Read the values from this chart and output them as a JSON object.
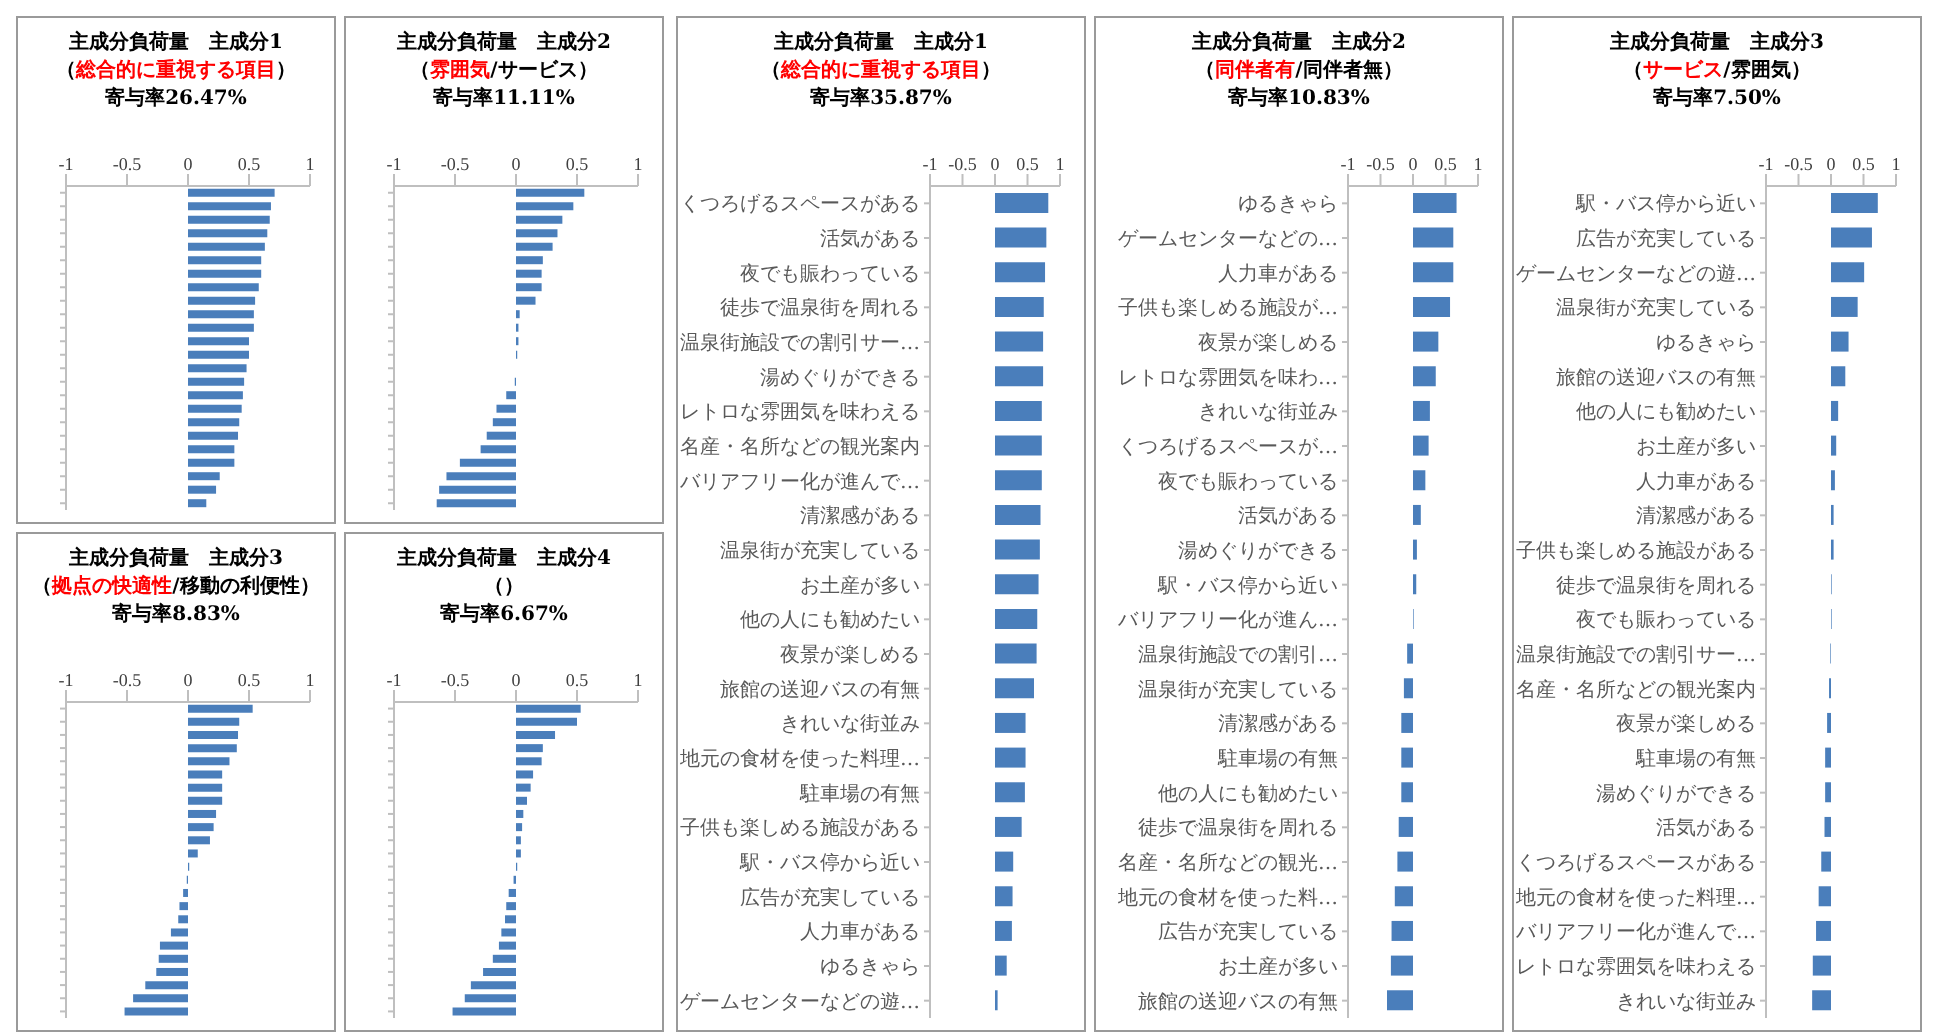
{
  "chart_data": [
    {
      "type": "bar",
      "orientation": "horizontal",
      "title": "主成分負荷量　主成分1",
      "subtitle": "（総合的に重視する項目）",
      "annotations": [
        "寄与率26.47%"
      ],
      "color": "#4a7ebb",
      "xlim": [
        -1,
        1
      ],
      "xticks": [
        -1,
        -0.5,
        0,
        0.5,
        1
      ],
      "categories": [
        null,
        null,
        null,
        null,
        null,
        null,
        null,
        null,
        null,
        null,
        null,
        null,
        null,
        null,
        null,
        null,
        null,
        null,
        null,
        null,
        null,
        null,
        null,
        null
      ],
      "values": [
        0.71,
        0.68,
        0.67,
        0.65,
        0.63,
        0.6,
        0.6,
        0.58,
        0.55,
        0.54,
        0.54,
        0.5,
        0.5,
        0.48,
        0.46,
        0.45,
        0.44,
        0.42,
        0.41,
        0.38,
        0.38,
        0.26,
        0.23,
        0.15
      ]
    },
    {
      "type": "bar",
      "orientation": "horizontal",
      "title": "主成分負荷量　主成分2",
      "subtitle": "（雰囲気/サービス）",
      "annotations": [
        "寄与率11.11%"
      ],
      "color": "#4a7ebb",
      "xlim": [
        -1,
        1
      ],
      "xticks": [
        -1,
        -0.5,
        0,
        0.5,
        1
      ],
      "categories": [
        null,
        null,
        null,
        null,
        null,
        null,
        null,
        null,
        null,
        null,
        null,
        null,
        null,
        null,
        null,
        null,
        null,
        null,
        null,
        null,
        null,
        null,
        null,
        null
      ],
      "values": [
        0.56,
        0.47,
        0.38,
        0.34,
        0.3,
        0.22,
        0.21,
        0.21,
        0.16,
        0.03,
        0.02,
        0.02,
        0.01,
        0.0,
        -0.01,
        -0.08,
        -0.16,
        -0.19,
        -0.24,
        -0.29,
        -0.46,
        -0.57,
        -0.63,
        -0.65
      ]
    },
    {
      "type": "bar",
      "orientation": "horizontal",
      "title": "主成分負荷量　主成分3",
      "subtitle": "（拠点の快適性/移動の利便性）",
      "annotations": [
        "寄与率8.83%"
      ],
      "color": "#4a7ebb",
      "xlim": [
        -1,
        1
      ],
      "xticks": [
        -1,
        -0.5,
        0,
        0.5,
        1
      ],
      "categories": [
        null,
        null,
        null,
        null,
        null,
        null,
        null,
        null,
        null,
        null,
        null,
        null,
        null,
        null,
        null,
        null,
        null,
        null,
        null,
        null,
        null,
        null,
        null,
        null
      ],
      "values": [
        0.53,
        0.42,
        0.41,
        0.4,
        0.34,
        0.28,
        0.28,
        0.28,
        0.23,
        0.21,
        0.18,
        0.08,
        0.01,
        -0.01,
        -0.04,
        -0.07,
        -0.08,
        -0.14,
        -0.23,
        -0.24,
        -0.26,
        -0.35,
        -0.45,
        -0.52
      ]
    },
    {
      "type": "bar",
      "orientation": "horizontal",
      "title": "主成分負荷量　主成分4",
      "subtitle": "（）",
      "annotations": [
        "寄与率6.67%"
      ],
      "color": "#4a7ebb",
      "xlim": [
        -1,
        1
      ],
      "xticks": [
        -1,
        -0.5,
        0,
        0.5,
        1
      ],
      "categories": [
        null,
        null,
        null,
        null,
        null,
        null,
        null,
        null,
        null,
        null,
        null,
        null,
        null,
        null,
        null,
        null,
        null,
        null,
        null,
        null,
        null,
        null,
        null,
        null
      ],
      "values": [
        0.53,
        0.5,
        0.32,
        0.22,
        0.21,
        0.14,
        0.12,
        0.09,
        0.06,
        0.05,
        0.04,
        0.04,
        0.01,
        -0.02,
        -0.06,
        -0.08,
        -0.09,
        -0.12,
        -0.14,
        -0.19,
        -0.27,
        -0.37,
        -0.42,
        -0.52
      ]
    },
    {
      "type": "bar",
      "orientation": "horizontal",
      "title": "主成分負荷量　主成分1",
      "subtitle": "（総合的に重視する項目）",
      "annotations": [
        "寄与率35.87%"
      ],
      "color": "#4a7ebb",
      "xlim": [
        -1,
        1
      ],
      "xticks": [
        -1,
        -0.5,
        0,
        0.5,
        1
      ],
      "categories": [
        "くつろげるスペースがある",
        "活気がある",
        "夜でも賑わっている",
        "徒歩で温泉街を周れる",
        "温泉街施設での割引サー…",
        "湯めぐりができる",
        "レトロな雰囲気を味わえる",
        "名産・名所などの観光案内",
        "バリアフリー化が進んで…",
        "清潔感がある",
        "温泉街が充実している",
        "お土産が多い",
        "他の人にも勧めたい",
        "夜景が楽しめる",
        "旅館の送迎バスの有無",
        "きれいな街並み",
        "地元の食材を使った料理…",
        "駐車場の有無",
        "子供も楽しめる施設がある",
        "駅・バス停から近い",
        "広告が充実している",
        "人力車がある",
        "ゆるきゃら",
        "ゲームセンターなどの遊…"
      ],
      "values": [
        0.82,
        0.79,
        0.77,
        0.75,
        0.74,
        0.74,
        0.72,
        0.72,
        0.72,
        0.7,
        0.69,
        0.67,
        0.65,
        0.64,
        0.6,
        0.47,
        0.47,
        0.46,
        0.41,
        0.28,
        0.27,
        0.26,
        0.18,
        0.04
      ]
    },
    {
      "type": "bar",
      "orientation": "horizontal",
      "title": "主成分負荷量　主成分2",
      "subtitle": "（同伴者有/同伴者無）",
      "annotations": [
        "寄与率10.83%"
      ],
      "color": "#4a7ebb",
      "xlim": [
        -1,
        1
      ],
      "xticks": [
        -1,
        -0.5,
        0,
        0.5,
        1
      ],
      "categories": [
        "ゆるきゃら",
        "ゲームセンターなどの…",
        "人力車がある",
        "子供も楽しめる施設が…",
        "夜景が楽しめる",
        "レトロな雰囲気を味わ…",
        "きれいな街並み",
        "くつろげるスペースが…",
        "夜でも賑わっている",
        "活気がある",
        "湯めぐりができる",
        "駅・バス停から近い",
        "バリアフリー化が進ん…",
        "温泉街施設での割引…",
        "温泉街が充実している",
        "清潔感がある",
        "駐車場の有無",
        "他の人にも勧めたい",
        "徒歩で温泉街を周れる",
        "名産・名所などの観光…",
        "地元の食材を使った料…",
        "広告が充実している",
        "お土産が多い",
        "旅館の送迎バスの有無"
      ],
      "values": [
        0.67,
        0.62,
        0.62,
        0.57,
        0.39,
        0.35,
        0.26,
        0.24,
        0.19,
        0.12,
        0.06,
        0.05,
        0.01,
        -0.09,
        -0.14,
        -0.18,
        -0.18,
        -0.18,
        -0.22,
        -0.24,
        -0.28,
        -0.33,
        -0.34,
        -0.4
      ]
    },
    {
      "type": "bar",
      "orientation": "horizontal",
      "title": "主成分負荷量　主成分3",
      "subtitle": "（サービス/雰囲気）",
      "annotations": [
        "寄与率7.50%"
      ],
      "color": "#4a7ebb",
      "xlim": [
        -1,
        1
      ],
      "xticks": [
        -1,
        -0.5,
        0,
        0.5,
        1
      ],
      "categories": [
        "駅・バス停から近い",
        "広告が充実している",
        "ゲームセンターなどの遊…",
        "温泉街が充実している",
        "ゆるきゃら",
        "旅館の送迎バスの有無",
        "他の人にも勧めたい",
        "お土産が多い",
        "人力車がある",
        "清潔感がある",
        "子供も楽しめる施設がある",
        "徒歩で温泉街を周れる",
        "夜でも賑わっている",
        "温泉街施設での割引サー…",
        "名産・名所などの観光案内",
        "夜景が楽しめる",
        "駐車場の有無",
        "湯めぐりができる",
        "活気がある",
        "くつろげるスペースがある",
        "地元の食材を使った料理…",
        "バリアフリー化が進んで…",
        "レトロな雰囲気を味わえる",
        "きれいな街並み"
      ],
      "values": [
        0.72,
        0.63,
        0.51,
        0.41,
        0.27,
        0.22,
        0.11,
        0.08,
        0.06,
        0.04,
        0.04,
        0.01,
        0.01,
        -0.01,
        -0.03,
        -0.06,
        -0.09,
        -0.09,
        -0.1,
        -0.15,
        -0.19,
        -0.23,
        -0.28,
        -0.29
      ]
    }
  ]
}
